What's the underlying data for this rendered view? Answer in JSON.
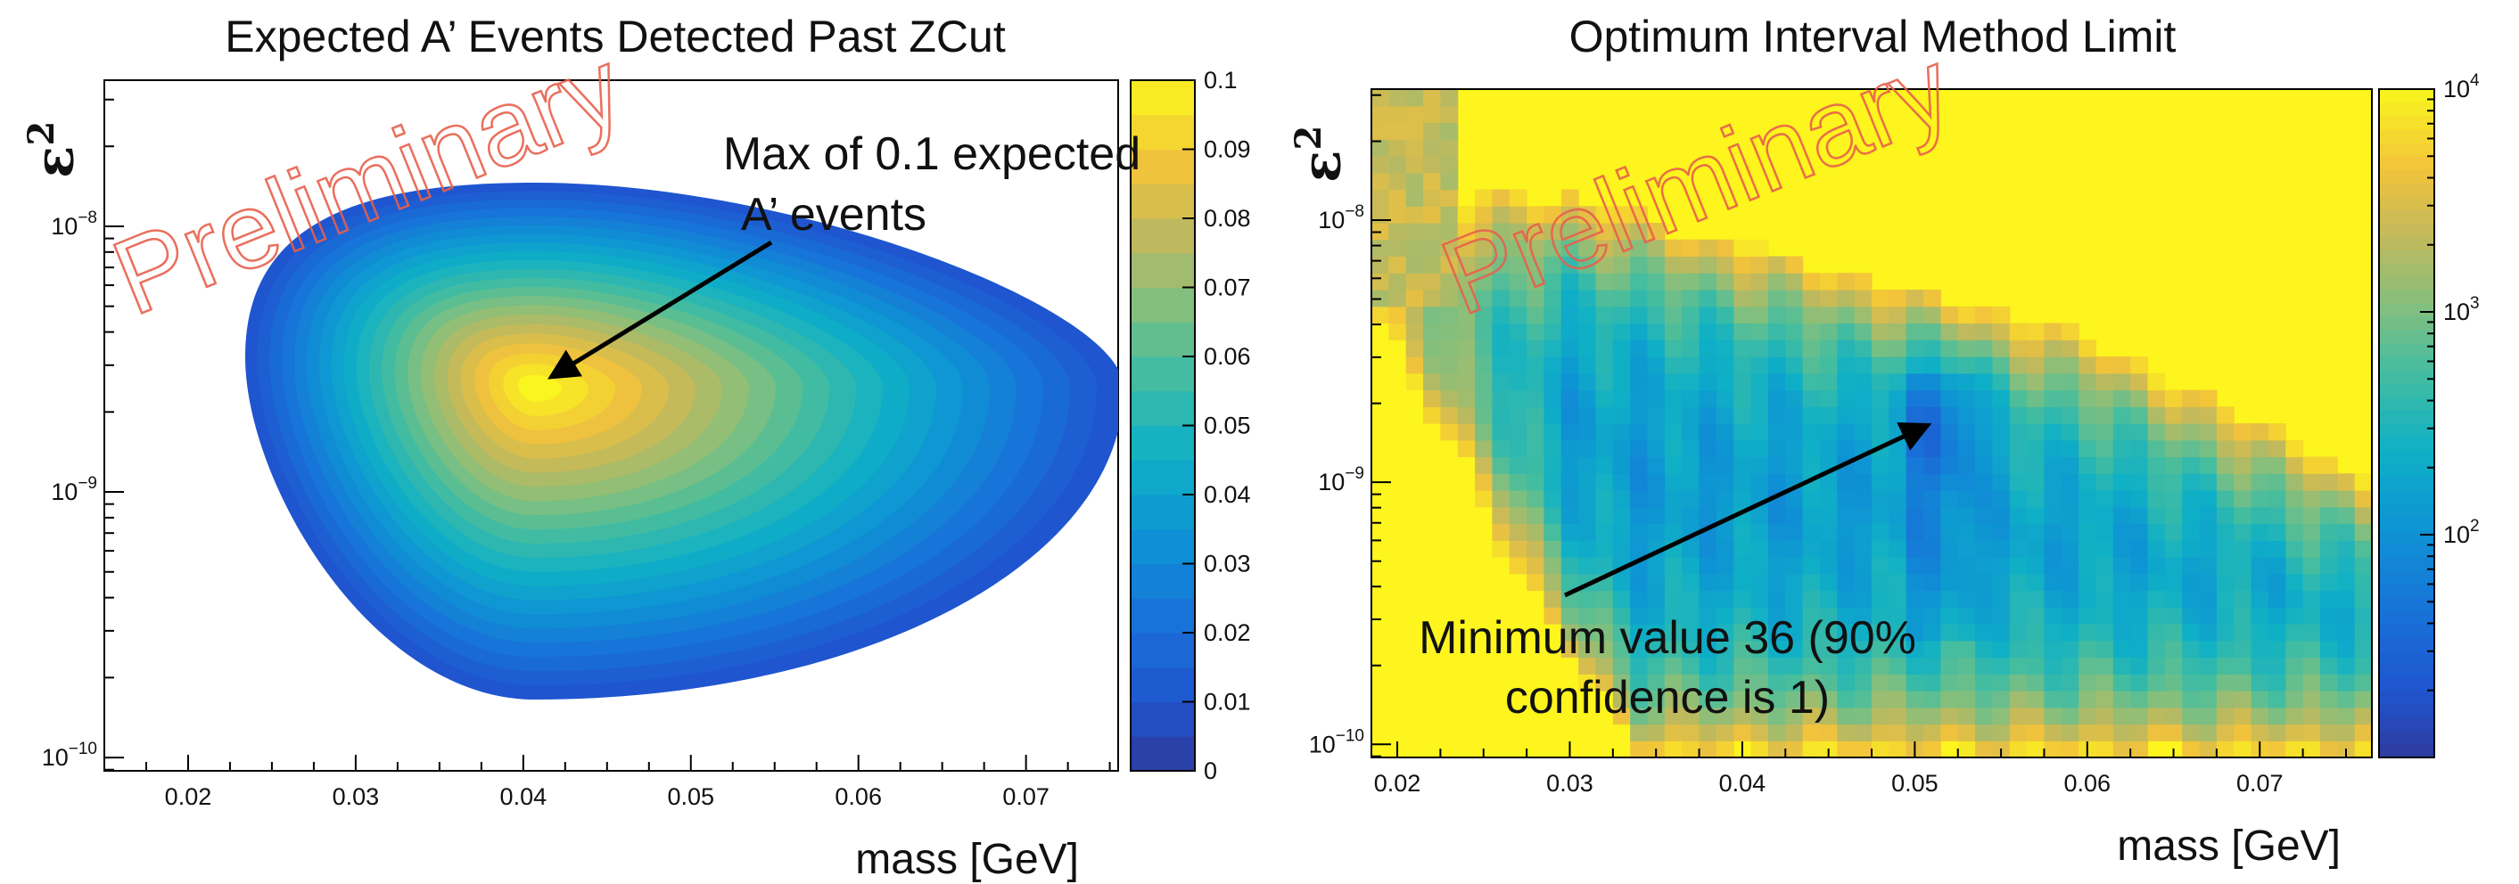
{
  "chart_data": [
    {
      "type": "heatmap",
      "style": "filled-contour",
      "title": "Expected A’ Events Detected Past ZCut",
      "xlabel": "mass [GeV]",
      "ylabel": "ε",
      "ylabel_superscript": "2",
      "xlim": [
        0.015,
        0.0755
      ],
      "ylog_range": [
        -10.05,
        -7.45
      ],
      "x_ticks": [
        0.02,
        0.03,
        0.04,
        0.05,
        0.06,
        0.07
      ],
      "x_tick_labels": [
        "0.02",
        "0.03",
        "0.04",
        "0.05",
        "0.06",
        "0.07"
      ],
      "y_tick_bases": [
        "10",
        "10",
        "10"
      ],
      "y_tick_exponents": [
        "−8",
        "−9",
        "−10"
      ],
      "y_tick_log_values": [
        -8,
        -9,
        -10
      ],
      "colorbar": {
        "range": [
          0,
          0.1
        ],
        "ticks": [
          0,
          0.01,
          0.02,
          0.03,
          0.04,
          0.05,
          0.06,
          0.07,
          0.08,
          0.09,
          0.1
        ],
        "tick_labels": [
          "0",
          "0.01",
          "0.02",
          "0.03",
          "0.04",
          "0.05",
          "0.06",
          "0.07",
          "0.08",
          "0.09",
          "0.1"
        ]
      },
      "peak": {
        "mass": 0.043,
        "log_eps2": -8.59,
        "value": 0.1
      },
      "annotation": {
        "lines": [
          "Max of 0.1 expected",
          "A’ events"
        ],
        "arrow_to": {
          "mass": 0.0425,
          "log_eps2": -8.6
        }
      },
      "watermark": "Preliminary"
    },
    {
      "type": "heatmap",
      "style": "binned-log-color",
      "title": "Optimum Interval Method Limit",
      "xlabel": "mass [GeV]",
      "ylabel": "ε",
      "ylabel_superscript": "2",
      "xlim": [
        0.0185,
        0.0765
      ],
      "ylog_range": [
        -10.05,
        -7.5
      ],
      "x_ticks": [
        0.02,
        0.03,
        0.04,
        0.05,
        0.06,
        0.07
      ],
      "x_tick_labels": [
        "0.02",
        "0.03",
        "0.04",
        "0.05",
        "0.06",
        "0.07"
      ],
      "y_tick_bases": [
        "10",
        "10",
        "10"
      ],
      "y_tick_exponents": [
        "−8",
        "−9",
        "−10"
      ],
      "y_tick_log_values": [
        -8,
        -9,
        -10
      ],
      "colorbar": {
        "scale": "log",
        "range": [
          10,
          10000
        ],
        "tick_bases": [
          "10",
          "10",
          "10"
        ],
        "tick_exponents": [
          "4",
          "3",
          "2"
        ],
        "tick_values": [
          10000,
          1000,
          100
        ]
      },
      "minimum": {
        "mass": 0.0515,
        "log_eps2": -8.72,
        "value": 36
      },
      "annotation": {
        "lines": [
          "Minimum value 36 (90%",
          "confidence is 1)"
        ],
        "arrow_to": {
          "mass": 0.0513,
          "log_eps2": -8.73
        }
      },
      "watermark": "Preliminary"
    }
  ]
}
